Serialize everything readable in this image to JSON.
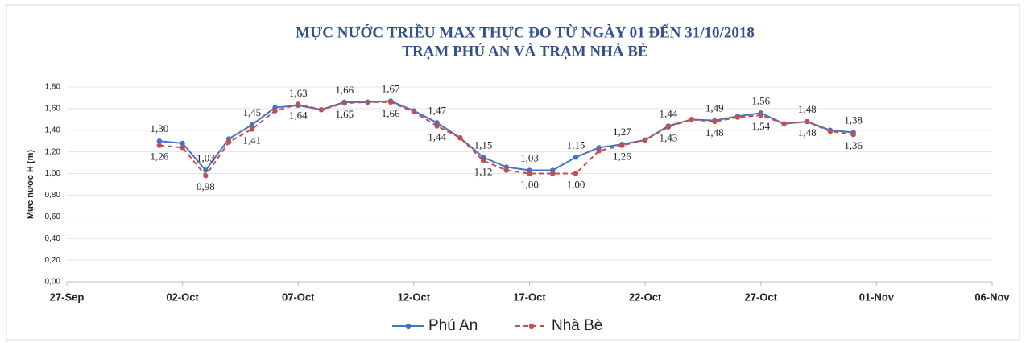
{
  "chart_data": {
    "type": "line",
    "title": "MỰC NƯỚC TRIỀU MAX THỰC ĐO TỪ NGÀY 01 ĐẾN 31/10/2018",
    "subtitle": "TRẠM PHÚ AN VÀ TRẠM NHÀ BÈ",
    "y_label": "Mực nước H (m)",
    "x": [
      "01-Oct",
      "02-Oct",
      "03-Oct",
      "04-Oct",
      "05-Oct",
      "06-Oct",
      "07-Oct",
      "08-Oct",
      "09-Oct",
      "10-Oct",
      "11-Oct",
      "12-Oct",
      "13-Oct",
      "14-Oct",
      "15-Oct",
      "16-Oct",
      "17-Oct",
      "18-Oct",
      "19-Oct",
      "20-Oct",
      "21-Oct",
      "22-Oct",
      "23-Oct",
      "24-Oct",
      "25-Oct",
      "26-Oct",
      "27-Oct",
      "28-Oct",
      "29-Oct",
      "30-Oct",
      "31-Oct"
    ],
    "series": [
      {
        "name": "Phú An",
        "color": "#4472c4",
        "values": [
          1.3,
          1.28,
          1.03,
          1.32,
          1.45,
          1.61,
          1.63,
          1.59,
          1.66,
          1.66,
          1.67,
          1.58,
          1.47,
          1.33,
          1.15,
          1.06,
          1.03,
          1.03,
          1.15,
          1.24,
          1.27,
          1.31,
          1.44,
          1.5,
          1.49,
          1.53,
          1.56,
          1.46,
          1.48,
          1.4,
          1.38
        ],
        "value_labels": [
          "1,30",
          null,
          "1,03",
          null,
          "1,45",
          null,
          "1,63",
          null,
          "1,66",
          null,
          "1,67",
          null,
          "1,47",
          null,
          "1,15",
          null,
          "1,03",
          null,
          "1,15",
          null,
          "1,27",
          null,
          "1,44",
          null,
          "1,49",
          null,
          "1,56",
          null,
          "1,48",
          null,
          "1,38"
        ]
      },
      {
        "name": "Nhà Bè",
        "color": "#c0504d",
        "dashed": true,
        "values": [
          1.26,
          1.24,
          0.98,
          1.29,
          1.41,
          1.58,
          1.64,
          1.59,
          1.65,
          1.66,
          1.66,
          1.57,
          1.44,
          1.33,
          1.12,
          1.03,
          1.0,
          1.0,
          1.0,
          1.21,
          1.26,
          1.31,
          1.43,
          1.5,
          1.48,
          1.52,
          1.54,
          1.46,
          1.48,
          1.39,
          1.36
        ],
        "value_labels": [
          "1,26",
          null,
          "0,98",
          null,
          "1,41",
          null,
          "1,64",
          null,
          "1,65",
          null,
          "1,66",
          null,
          "1,44",
          null,
          "1,12",
          null,
          "1,00",
          null,
          "1,00",
          null,
          "1,26",
          null,
          "1,43",
          null,
          "1,48",
          null,
          "1,54",
          null,
          "1,48",
          null,
          "1,36"
        ]
      }
    ],
    "xlim": [
      "27-Sep",
      "06-Nov"
    ],
    "xticks": [
      "27-Sep",
      "02-Oct",
      "07-Oct",
      "12-Oct",
      "17-Oct",
      "22-Oct",
      "27-Oct",
      "01-Nov",
      "06-Nov"
    ],
    "ylim": [
      0,
      1.8
    ],
    "yticks": [
      {
        "value": 0,
        "label": "0,00"
      },
      {
        "value": 0.2,
        "label": "0,20"
      },
      {
        "value": 0.4,
        "label": "0,40"
      },
      {
        "value": 0.6,
        "label": "0,60"
      },
      {
        "value": 0.8,
        "label": "0,80"
      },
      {
        "value": 1,
        "label": "1,00"
      },
      {
        "value": 1.2,
        "label": "1,20"
      },
      {
        "value": 1.4,
        "label": "1,40"
      },
      {
        "value": 1.6,
        "label": "1,60"
      },
      {
        "value": 1.8,
        "label": "1,80"
      }
    ],
    "grid": true,
    "legend": "bottom"
  }
}
